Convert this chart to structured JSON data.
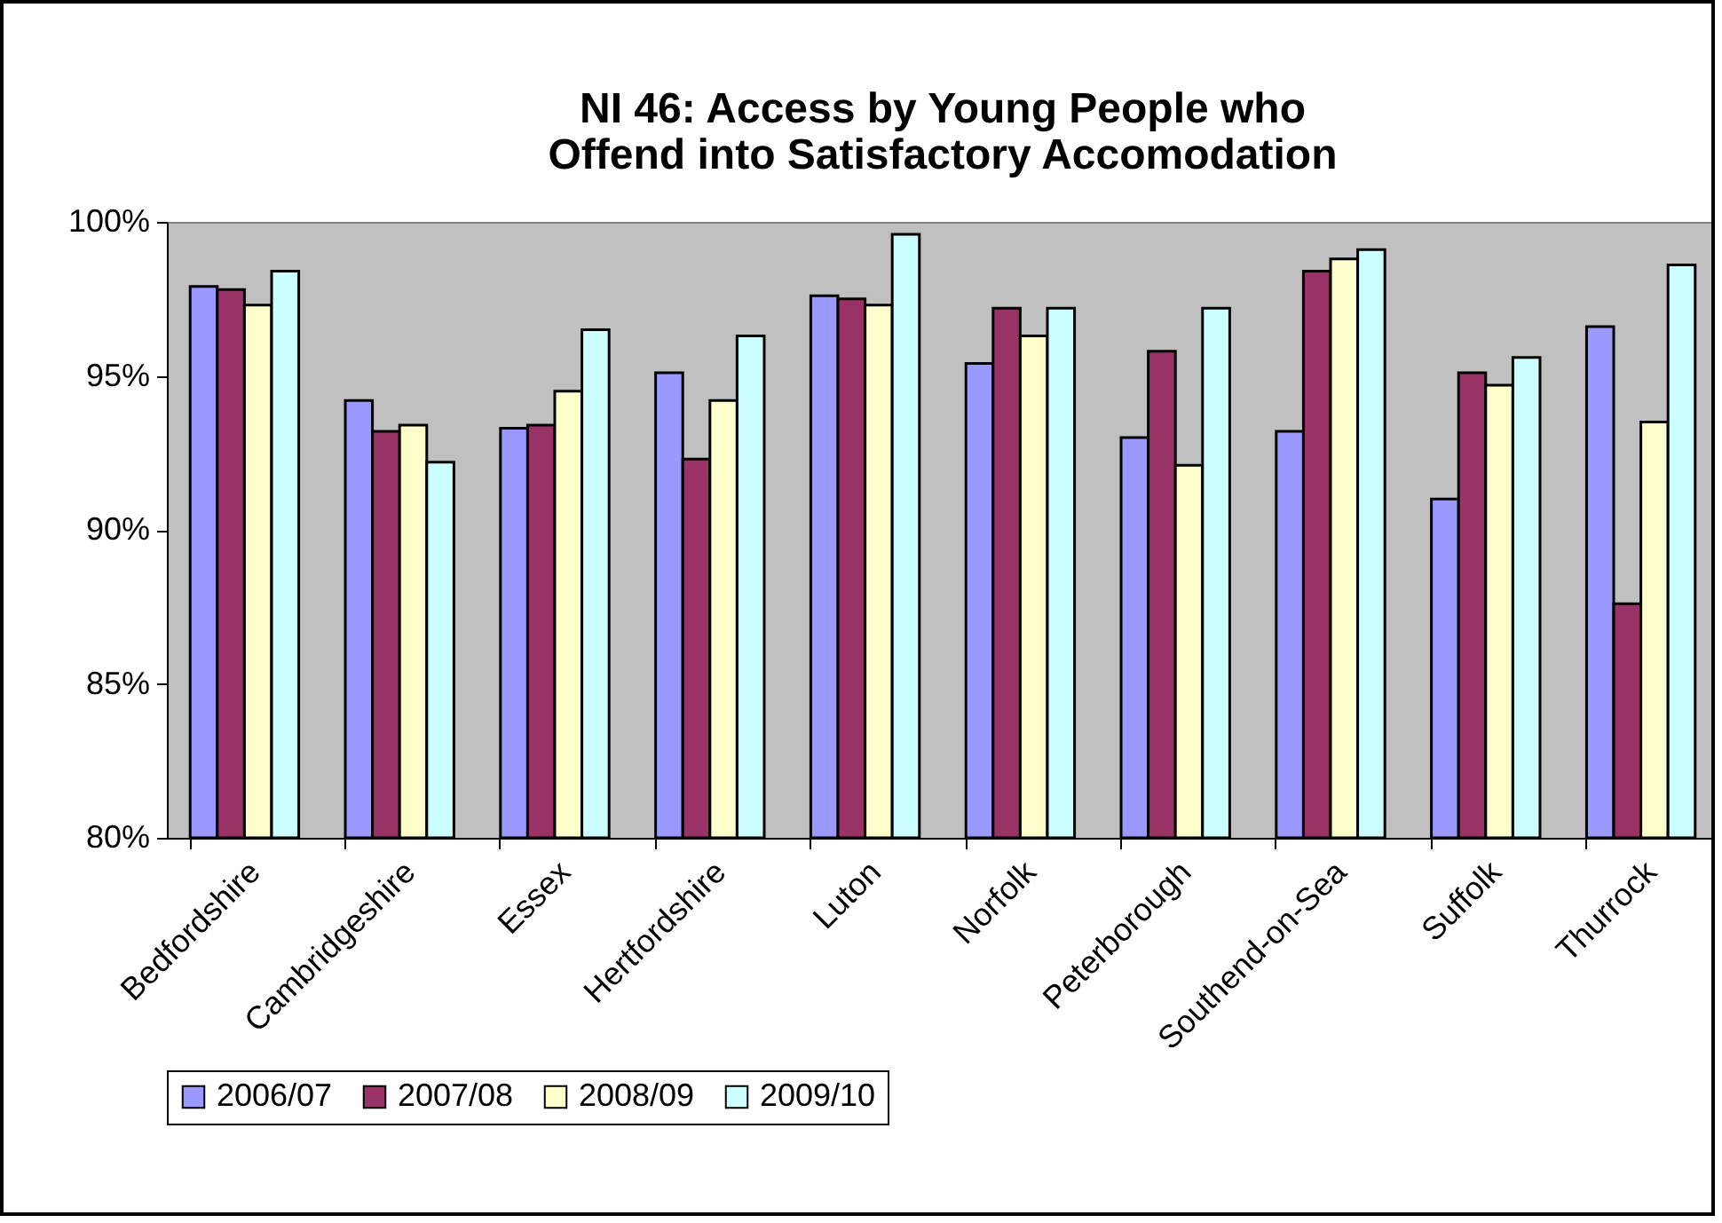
{
  "chart_data": {
    "type": "bar",
    "title": "NI 46: Access by Young People who Offend into Satisfactory Accomodation",
    "categories": [
      "Bedfordshire",
      "Cambridgeshire",
      "Essex",
      "Hertfordshire",
      "Luton",
      "Norfolk",
      "Peterborough",
      "Southend-on-Sea",
      "Suffolk",
      "Thurrock"
    ],
    "series": [
      {
        "name": "2006/07",
        "color": "#9999ff",
        "values": [
          97.9,
          94.2,
          93.3,
          95.1,
          97.6,
          95.4,
          93.0,
          93.2,
          91.0,
          96.6
        ]
      },
      {
        "name": "2007/08",
        "color": "#993366",
        "values": [
          97.8,
          93.2,
          93.4,
          92.3,
          97.5,
          97.2,
          95.8,
          98.4,
          95.1,
          87.6
        ]
      },
      {
        "name": "2008/09",
        "color": "#ffffcc",
        "values": [
          97.3,
          93.4,
          94.5,
          94.2,
          97.3,
          96.3,
          92.1,
          98.8,
          94.7,
          93.5
        ]
      },
      {
        "name": "2009/10",
        "color": "#ccffff",
        "values": [
          98.4,
          92.2,
          96.5,
          96.3,
          99.6,
          97.2,
          97.2,
          99.1,
          95.6,
          98.6
        ]
      }
    ],
    "ylim": [
      80,
      100
    ],
    "yticks": [
      {
        "value": 80,
        "label": "80%"
      },
      {
        "value": 85,
        "label": "85%"
      },
      {
        "value": 90,
        "label": "90%"
      },
      {
        "value": 95,
        "label": "95%"
      },
      {
        "value": 100,
        "label": "100%"
      }
    ],
    "grid": false,
    "legend": "bottom"
  }
}
